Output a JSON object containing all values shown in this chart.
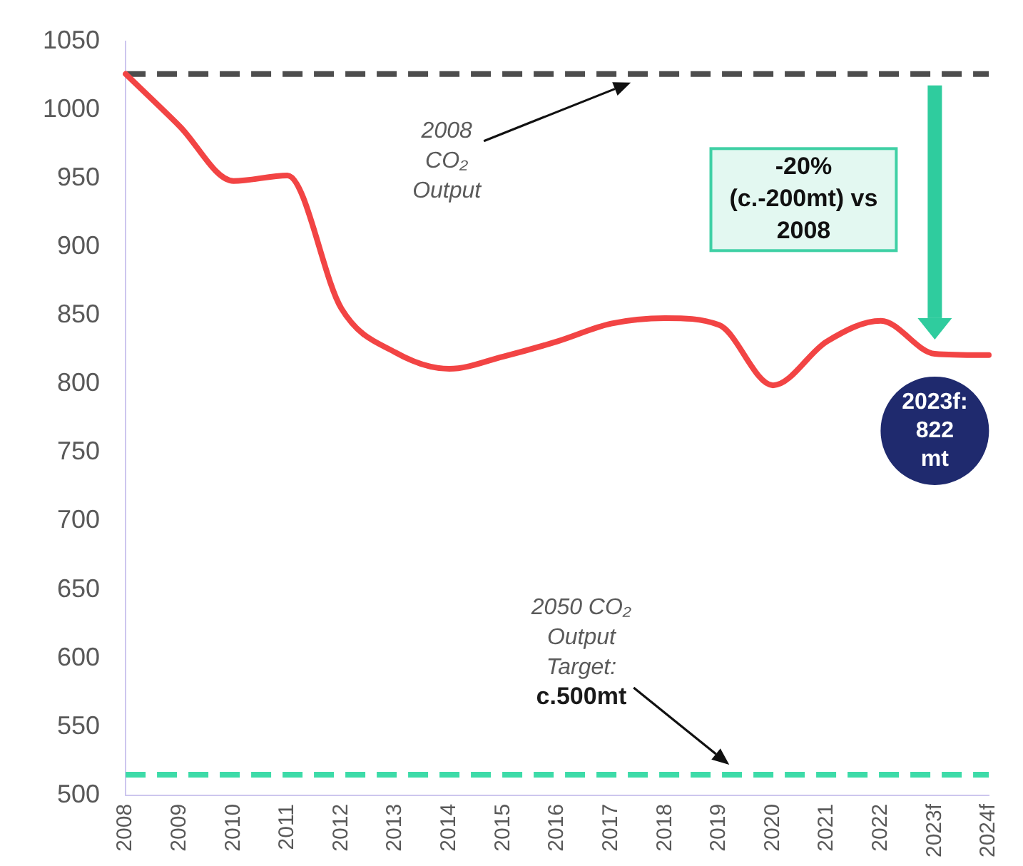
{
  "chart_data": {
    "type": "line",
    "categories": [
      "2008",
      "2009",
      "2010",
      "2011",
      "2012",
      "2013",
      "2014",
      "2015",
      "2016",
      "2017",
      "2018",
      "2019",
      "2020",
      "2021",
      "2022",
      "2023f",
      "2024f"
    ],
    "values": [
      1026,
      988,
      948,
      952,
      855,
      823,
      811,
      820,
      831,
      844,
      848,
      843,
      799,
      831,
      846,
      822,
      821
    ],
    "color": "#f24444",
    "marker": "none",
    "ylim": [
      500,
      1050
    ],
    "yticks": [
      500,
      550,
      600,
      650,
      700,
      750,
      800,
      850,
      900,
      950,
      1000,
      1050
    ],
    "ref_lines": [
      {
        "axis": "y",
        "value": 1026,
        "label": "2008 CO₂ Output",
        "color": "#4d4d4d",
        "line_style": "dashed"
      },
      {
        "axis": "y",
        "value": 515,
        "label": "2050 CO₂ Output Target: c.500mt",
        "color": "#3ddba8",
        "line_style": "dashed"
      }
    ],
    "annotations": [
      "-20% (c.-200mt) vs 2008",
      {
        "text": "2023f: 822 mt",
        "x": "2023f",
        "y": 822
      }
    ]
  }
}
